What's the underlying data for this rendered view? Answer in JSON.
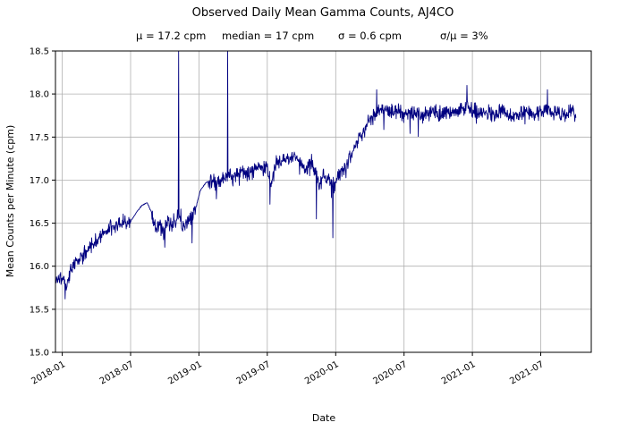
{
  "chart_data": {
    "type": "line",
    "title": "Observed Daily Mean Gamma Counts, AJ4CO",
    "stats": {
      "mu": "μ = 17.2 cpm",
      "median": "median = 17 cpm",
      "sigma": "σ = 0.6 cpm",
      "sigma_over_mu": "σ/μ = 3%"
    },
    "xlabel": "Date",
    "ylabel": "Mean Counts per Minute (cpm)",
    "series_name": "observed daily mean gamma counts",
    "x_range_years": [
      2017.95,
      2021.87
    ],
    "ylim": [
      15.0,
      18.5
    ],
    "x_ticks": [
      {
        "value": 2018.0,
        "label": "2018-01"
      },
      {
        "value": 2018.5,
        "label": "2018-07"
      },
      {
        "value": 2019.0,
        "label": "2019-01"
      },
      {
        "value": 2019.5,
        "label": "2019-07"
      },
      {
        "value": 2020.0,
        "label": "2020-01"
      },
      {
        "value": 2020.5,
        "label": "2020-07"
      },
      {
        "value": 2021.0,
        "label": "2021-01"
      },
      {
        "value": 2021.5,
        "label": "2021-07"
      }
    ],
    "y_ticks": [
      {
        "value": 15.0,
        "label": "15.0"
      },
      {
        "value": 15.5,
        "label": "15.5"
      },
      {
        "value": 16.0,
        "label": "16.0"
      },
      {
        "value": 16.5,
        "label": "16.5"
      },
      {
        "value": 17.0,
        "label": "17.0"
      },
      {
        "value": 17.5,
        "label": "17.5"
      },
      {
        "value": 18.0,
        "label": "18.0"
      },
      {
        "value": 18.5,
        "label": "18.5"
      }
    ],
    "grid": true,
    "legend": "none",
    "line_color": "#000080",
    "grid_color": "#b0b0b0",
    "axis_color": "#000000",
    "background_color": "#ffffff",
    "points_per_year": 365,
    "noise_amp": 0.11,
    "noise_seed": 1234567,
    "trend_points": [
      [
        2017.955,
        15.82
      ],
      [
        2018.0,
        15.88
      ],
      [
        2018.03,
        15.78
      ],
      [
        2018.06,
        15.95
      ],
      [
        2018.1,
        16.05
      ],
      [
        2018.15,
        16.12
      ],
      [
        2018.2,
        16.22
      ],
      [
        2018.25,
        16.3
      ],
      [
        2018.3,
        16.38
      ],
      [
        2018.35,
        16.45
      ],
      [
        2018.4,
        16.48
      ],
      [
        2018.45,
        16.52
      ],
      [
        2018.5,
        16.52
      ],
      [
        2018.54,
        16.62
      ],
      [
        2018.58,
        16.7
      ],
      [
        2018.62,
        16.74
      ],
      [
        2018.655,
        16.62
      ],
      [
        2018.68,
        16.45
      ],
      [
        2018.71,
        16.48
      ],
      [
        2018.74,
        16.38
      ],
      [
        2018.77,
        16.5
      ],
      [
        2018.8,
        16.48
      ],
      [
        2018.83,
        16.55
      ],
      [
        2018.86,
        16.58
      ],
      [
        2018.89,
        16.48
      ],
      [
        2018.92,
        16.55
      ],
      [
        2018.95,
        16.55
      ],
      [
        2018.98,
        16.7
      ],
      [
        2019.01,
        16.88
      ],
      [
        2019.05,
        16.97
      ],
      [
        2019.09,
        17.0
      ],
      [
        2019.13,
        16.98
      ],
      [
        2019.17,
        17.02
      ],
      [
        2019.21,
        17.05
      ],
      [
        2019.25,
        17.06
      ],
      [
        2019.3,
        17.1
      ],
      [
        2019.35,
        17.08
      ],
      [
        2019.4,
        17.12
      ],
      [
        2019.45,
        17.16
      ],
      [
        2019.5,
        17.15
      ],
      [
        2019.53,
        16.95
      ],
      [
        2019.56,
        17.18
      ],
      [
        2019.6,
        17.22
      ],
      [
        2019.65,
        17.25
      ],
      [
        2019.7,
        17.28
      ],
      [
        2019.74,
        17.2
      ],
      [
        2019.78,
        17.12
      ],
      [
        2019.82,
        17.22
      ],
      [
        2019.85,
        17.1
      ],
      [
        2019.88,
        16.95
      ],
      [
        2019.91,
        17.05
      ],
      [
        2019.94,
        17.0
      ],
      [
        2019.97,
        16.98
      ],
      [
        2020.0,
        16.95
      ],
      [
        2020.03,
        17.08
      ],
      [
        2020.06,
        17.15
      ],
      [
        2020.1,
        17.25
      ],
      [
        2020.14,
        17.38
      ],
      [
        2020.18,
        17.5
      ],
      [
        2020.22,
        17.62
      ],
      [
        2020.26,
        17.72
      ],
      [
        2020.3,
        17.8
      ],
      [
        2020.35,
        17.82
      ],
      [
        2020.4,
        17.78
      ],
      [
        2020.45,
        17.8
      ],
      [
        2020.5,
        17.76
      ],
      [
        2020.55,
        17.8
      ],
      [
        2020.6,
        17.78
      ],
      [
        2020.65,
        17.75
      ],
      [
        2020.7,
        17.8
      ],
      [
        2020.75,
        17.78
      ],
      [
        2020.8,
        17.76
      ],
      [
        2020.85,
        17.78
      ],
      [
        2020.9,
        17.8
      ],
      [
        2020.95,
        17.84
      ],
      [
        2021.0,
        17.82
      ],
      [
        2021.05,
        17.8
      ],
      [
        2021.1,
        17.78
      ],
      [
        2021.15,
        17.76
      ],
      [
        2021.2,
        17.8
      ],
      [
        2021.25,
        17.78
      ],
      [
        2021.3,
        17.74
      ],
      [
        2021.35,
        17.78
      ],
      [
        2021.4,
        17.8
      ],
      [
        2021.45,
        17.76
      ],
      [
        2021.5,
        17.8
      ],
      [
        2021.55,
        17.82
      ],
      [
        2021.6,
        17.78
      ],
      [
        2021.65,
        17.76
      ],
      [
        2021.7,
        17.78
      ],
      [
        2021.73,
        17.8
      ],
      [
        2021.76,
        17.72
      ]
    ],
    "events": [
      {
        "x": 2018.02,
        "y": 15.62
      },
      {
        "x": 2018.75,
        "y": 16.22
      },
      {
        "x": 2018.95,
        "y": 16.27
      },
      {
        "x": 2019.52,
        "y": 16.72
      },
      {
        "x": 2019.86,
        "y": 16.55
      },
      {
        "x": 2019.98,
        "y": 16.33
      },
      {
        "x": 2020.3,
        "y": 18.05
      },
      {
        "x": 2020.96,
        "y": 18.1
      },
      {
        "x": 2021.55,
        "y": 18.05
      }
    ],
    "spikes": [
      {
        "x": 2018.85,
        "y": 18.6
      },
      {
        "x": 2019.21,
        "y": 18.6
      }
    ],
    "smooth_segments": [
      [
        2018.5,
        2018.655
      ],
      [
        2018.985,
        2019.07
      ]
    ]
  }
}
